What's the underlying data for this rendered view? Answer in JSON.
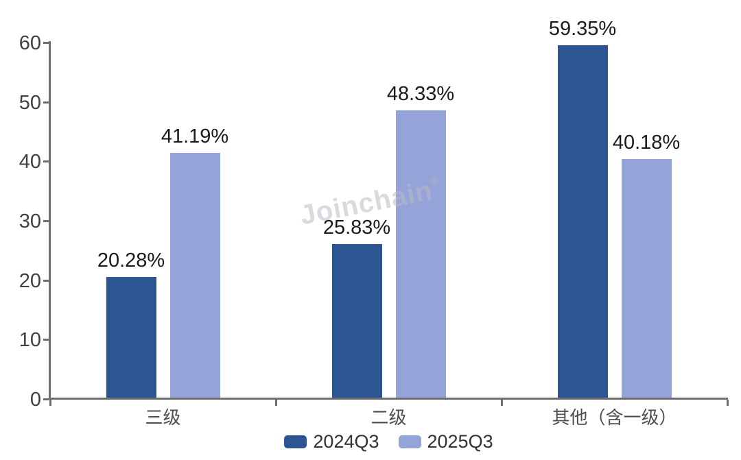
{
  "watermark": {
    "text": "Joinchain",
    "registered_mark": "®"
  },
  "chart_data": {
    "type": "bar",
    "title": "",
    "categories": [
      "三级",
      "二级",
      "其他（含一级）"
    ],
    "series": [
      {
        "name": "2024Q3",
        "color": "#2D5592",
        "values": [
          20.28,
          25.83,
          59.35
        ],
        "labels": [
          "20.28%",
          "25.83%",
          "59.35%"
        ]
      },
      {
        "name": "2025Q3",
        "color": "#94A3D8",
        "values": [
          41.19,
          48.33,
          40.18
        ],
        "labels": [
          "41.19%",
          "48.33%",
          "40.18%"
        ]
      }
    ],
    "xlabel": "",
    "ylabel": "",
    "ylim": [
      0,
      60
    ],
    "yticks": [
      0,
      10,
      20,
      30,
      40,
      50,
      60
    ],
    "grid": false,
    "legend_position": "bottom"
  },
  "colors": {
    "series_2024q3": "#2D5592",
    "series_2025q3": "#94A3D8",
    "axis": "#6E6E6E",
    "tick_label": "#404040",
    "data_label": "#1A1A1A",
    "category_label": "#4D4D4D",
    "legend_label": "#333333",
    "background": "#FFFFFF"
  }
}
